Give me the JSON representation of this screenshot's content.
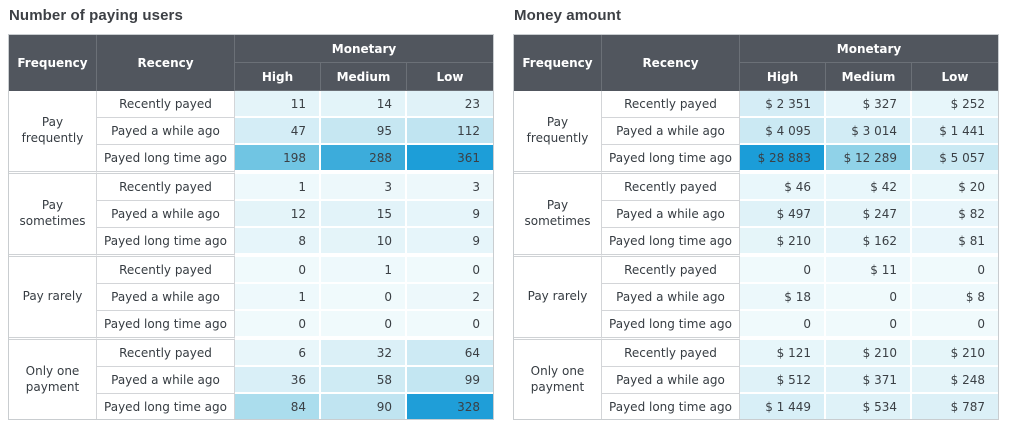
{
  "theme": {
    "header_bg": "#51565e",
    "header_text": "#ffffff",
    "grid_line": "#d3d5d8",
    "outer_border": "#c9cdd0",
    "cell_text": "#3b4045",
    "heat_max": "#1d9ed8",
    "heat_min": "#f0fafc"
  },
  "tables": [
    {
      "id": "users",
      "title": "Number of paying users",
      "columns": {
        "frequency": "Frequency",
        "recency": "Recency",
        "monetary": "Monetary",
        "high": "High",
        "medium": "Medium",
        "low": "Low"
      },
      "groups": [
        {
          "frequency": "Pay frequently",
          "rows": [
            {
              "recency": "Recently payed",
              "cells": [
                {
                  "text": "11",
                  "bg": "#e4f4f9"
                },
                {
                  "text": "14",
                  "bg": "#e3f4f9"
                },
                {
                  "text": "23",
                  "bg": "#e0f2f8"
                }
              ]
            },
            {
              "recency": "Payed a while ago",
              "cells": [
                {
                  "text": "47",
                  "bg": "#d4edf6"
                },
                {
                  "text": "95",
                  "bg": "#c6e7f2"
                },
                {
                  "text": "112",
                  "bg": "#c0e4f1"
                }
              ]
            },
            {
              "recency": "Payed long time ago",
              "cells": [
                {
                  "text": "198",
                  "bg": "#70c5e3"
                },
                {
                  "text": "288",
                  "bg": "#3cacdb"
                },
                {
                  "text": "361",
                  "bg": "#1d9ed8"
                }
              ]
            }
          ]
        },
        {
          "frequency": "Pay sometimes",
          "rows": [
            {
              "recency": "Recently payed",
              "cells": [
                {
                  "text": "1",
                  "bg": "#eef9fc"
                },
                {
                  "text": "3",
                  "bg": "#edf8fb"
                },
                {
                  "text": "3",
                  "bg": "#edf8fb"
                }
              ]
            },
            {
              "recency": "Payed a while ago",
              "cells": [
                {
                  "text": "12",
                  "bg": "#e4f4f9"
                },
                {
                  "text": "15",
                  "bg": "#e2f3f9"
                },
                {
                  "text": "9",
                  "bg": "#e6f5fa"
                }
              ]
            },
            {
              "recency": "Payed long time ago",
              "cells": [
                {
                  "text": "8",
                  "bg": "#e6f5fa"
                },
                {
                  "text": "10",
                  "bg": "#e4f4f9"
                },
                {
                  "text": "9",
                  "bg": "#e6f5fa"
                }
              ]
            }
          ]
        },
        {
          "frequency": "Pay rarely",
          "rows": [
            {
              "recency": "Recently payed",
              "cells": [
                {
                  "text": "0",
                  "bg": "#f0fafc"
                },
                {
                  "text": "1",
                  "bg": "#eef9fc"
                },
                {
                  "text": "0",
                  "bg": "#f0fafc"
                }
              ]
            },
            {
              "recency": "Payed a while ago",
              "cells": [
                {
                  "text": "1",
                  "bg": "#eef9fc"
                },
                {
                  "text": "0",
                  "bg": "#f0fafc"
                },
                {
                  "text": "2",
                  "bg": "#edf8fb"
                }
              ]
            },
            {
              "recency": "Payed long time ago",
              "cells": [
                {
                  "text": "0",
                  "bg": "#f0fafc"
                },
                {
                  "text": "0",
                  "bg": "#f0fafc"
                },
                {
                  "text": "0",
                  "bg": "#f0fafc"
                }
              ]
            }
          ]
        },
        {
          "frequency": "Only one payment",
          "rows": [
            {
              "recency": "Recently payed",
              "cells": [
                {
                  "text": "6",
                  "bg": "#e8f6fa"
                },
                {
                  "text": "32",
                  "bg": "#dbf0f7"
                },
                {
                  "text": "64",
                  "bg": "#cdeaf4"
                }
              ]
            },
            {
              "recency": "Payed a while ago",
              "cells": [
                {
                  "text": "36",
                  "bg": "#d9eff7"
                },
                {
                  "text": "58",
                  "bg": "#cfebf4"
                },
                {
                  "text": "99",
                  "bg": "#c3e6f2"
                }
              ]
            },
            {
              "recency": "Payed long time ago",
              "cells": [
                {
                  "text": "84",
                  "bg": "#abdded"
                },
                {
                  "text": "90",
                  "bg": "#c0e4f1"
                },
                {
                  "text": "328",
                  "bg": "#1f9ed8"
                }
              ]
            }
          ]
        }
      ]
    },
    {
      "id": "money",
      "title": "Money amount",
      "columns": {
        "frequency": "Frequency",
        "recency": "Recency",
        "monetary": "Monetary",
        "high": "High",
        "medium": "Medium",
        "low": "Low"
      },
      "groups": [
        {
          "frequency": "Pay frequently",
          "rows": [
            {
              "recency": "Recently payed",
              "cells": [
                {
                  "text": "$ 2 351",
                  "bg": "#d5edf6"
                },
                {
                  "text": "$ 327",
                  "bg": "#e6f5fa"
                },
                {
                  "text": "$ 252",
                  "bg": "#e7f6fa"
                }
              ]
            },
            {
              "recency": "Payed a while ago",
              "cells": [
                {
                  "text": "$ 4 095",
                  "bg": "#cbe9f3"
                },
                {
                  "text": "$ 3 014",
                  "bg": "#d2ecf5"
                },
                {
                  "text": "$ 1 441",
                  "bg": "#def1f8"
                }
              ]
            },
            {
              "recency": "Payed long time ago",
              "cells": [
                {
                  "text": "$ 28 883",
                  "bg": "#1b9dd8"
                },
                {
                  "text": "$ 12 289",
                  "bg": "#90d2e8"
                },
                {
                  "text": "$ 5 057",
                  "bg": "#cae9f3"
                }
              ]
            }
          ]
        },
        {
          "frequency": "Pay sometimes",
          "rows": [
            {
              "recency": "Recently payed",
              "cells": [
                {
                  "text": "$ 46",
                  "bg": "#e9f7fb"
                },
                {
                  "text": "$ 42",
                  "bg": "#e9f7fb"
                },
                {
                  "text": "$ 20",
                  "bg": "#ebf8fb"
                }
              ]
            },
            {
              "recency": "Payed a while ago",
              "cells": [
                {
                  "text": "$ 497",
                  "bg": "#dff2f8"
                },
                {
                  "text": "$ 247",
                  "bg": "#e4f4f9"
                },
                {
                  "text": "$ 82",
                  "bg": "#e9f6fb"
                }
              ]
            },
            {
              "recency": "Payed long time ago",
              "cells": [
                {
                  "text": "$ 210",
                  "bg": "#e5f5f9"
                },
                {
                  "text": "$ 162",
                  "bg": "#e6f5fa"
                },
                {
                  "text": "$ 81",
                  "bg": "#e9f6fb"
                }
              ]
            }
          ]
        },
        {
          "frequency": "Pay rarely",
          "rows": [
            {
              "recency": "Recently payed",
              "cells": [
                {
                  "text": "0",
                  "bg": "#f0fafc"
                },
                {
                  "text": "$ 11",
                  "bg": "#eef9fc"
                },
                {
                  "text": "0",
                  "bg": "#f0fafc"
                }
              ]
            },
            {
              "recency": "Payed a while ago",
              "cells": [
                {
                  "text": "$ 18",
                  "bg": "#ecf8fb"
                },
                {
                  "text": "0",
                  "bg": "#f0fafc"
                },
                {
                  "text": "$ 8",
                  "bg": "#eef9fc"
                }
              ]
            },
            {
              "recency": "Payed long time ago",
              "cells": [
                {
                  "text": "0",
                  "bg": "#f0fafc"
                },
                {
                  "text": "0",
                  "bg": "#f0fafc"
                },
                {
                  "text": "0",
                  "bg": "#f0fafc"
                }
              ]
            }
          ]
        },
        {
          "frequency": "Only one payment",
          "rows": [
            {
              "recency": "Recently payed",
              "cells": [
                {
                  "text": "$ 121",
                  "bg": "#e7f6fa"
                },
                {
                  "text": "$ 210",
                  "bg": "#e5f5f9"
                },
                {
                  "text": "$ 210",
                  "bg": "#e5f5f9"
                }
              ]
            },
            {
              "recency": "Payed a while ago",
              "cells": [
                {
                  "text": "$ 512",
                  "bg": "#dff2f8"
                },
                {
                  "text": "$ 371",
                  "bg": "#e2f3f9"
                },
                {
                  "text": "$ 248",
                  "bg": "#e4f4f9"
                }
              ]
            },
            {
              "recency": "Payed long time ago",
              "cells": [
                {
                  "text": "$ 1 449",
                  "bg": "#d8eff7"
                },
                {
                  "text": "$ 534",
                  "bg": "#dff2f8"
                },
                {
                  "text": "$ 787",
                  "bg": "#dcf0f7"
                }
              ]
            }
          ]
        }
      ]
    }
  ],
  "chart_data": [
    {
      "type": "heatmap",
      "title": "Number of paying users",
      "columns": [
        "High",
        "Medium",
        "Low"
      ],
      "column_group_label": "Monetary",
      "row_group_label": "Frequency",
      "row_label": "Recency",
      "row_groups": [
        "Pay frequently",
        "Pay sometimes",
        "Pay rarely",
        "Only one payment"
      ],
      "row_categories": [
        "Recently payed",
        "Payed a while ago",
        "Payed long time ago"
      ],
      "values": [
        [
          [
            11,
            14,
            23
          ],
          [
            47,
            95,
            112
          ],
          [
            198,
            288,
            361
          ]
        ],
        [
          [
            1,
            3,
            3
          ],
          [
            12,
            15,
            9
          ],
          [
            8,
            10,
            9
          ]
        ],
        [
          [
            0,
            1,
            0
          ],
          [
            1,
            0,
            2
          ],
          [
            0,
            0,
            0
          ]
        ],
        [
          [
            6,
            32,
            64
          ],
          [
            36,
            58,
            99
          ],
          [
            84,
            90,
            328
          ]
        ]
      ],
      "color_scale": [
        "#f0fafc",
        "#1d9ed8"
      ],
      "value_range": [
        0,
        361
      ]
    },
    {
      "type": "heatmap",
      "title": "Money amount",
      "columns": [
        "High",
        "Medium",
        "Low"
      ],
      "column_group_label": "Monetary",
      "row_group_label": "Frequency",
      "row_label": "Recency",
      "row_groups": [
        "Pay frequently",
        "Pay sometimes",
        "Pay rarely",
        "Only one payment"
      ],
      "row_categories": [
        "Recently payed",
        "Payed a while ago",
        "Payed long time ago"
      ],
      "values": [
        [
          [
            2351,
            327,
            252
          ],
          [
            4095,
            3014,
            1441
          ],
          [
            28883,
            12289,
            5057
          ]
        ],
        [
          [
            46,
            42,
            20
          ],
          [
            497,
            247,
            82
          ],
          [
            210,
            162,
            81
          ]
        ],
        [
          [
            0,
            11,
            0
          ],
          [
            18,
            0,
            8
          ],
          [
            0,
            0,
            0
          ]
        ],
        [
          [
            121,
            210,
            210
          ],
          [
            512,
            371,
            248
          ],
          [
            1449,
            534,
            787
          ]
        ]
      ],
      "unit": "$",
      "color_scale": [
        "#f0fafc",
        "#1d9ed8"
      ],
      "value_range": [
        0,
        28883
      ]
    }
  ]
}
